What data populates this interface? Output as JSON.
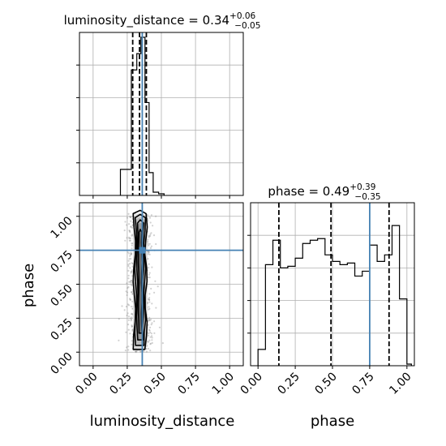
{
  "chart_data": [
    {
      "type": "histogram",
      "panel": "luminosity_distance marginal",
      "title": {
        "param": "luminosity_distance",
        "value": "0.34",
        "plus": "+0.06",
        "minus": "−0.05"
      },
      "xlim": [
        -0.1,
        1.1
      ],
      "bins": [
        [
          0.2,
          0.24,
          0.16
        ],
        [
          0.24,
          0.28,
          0.16
        ],
        [
          0.28,
          0.32,
          0.77
        ],
        [
          0.32,
          0.35,
          0.87
        ],
        [
          0.35,
          0.38,
          0.97
        ],
        [
          0.38,
          0.41,
          0.57
        ],
        [
          0.41,
          0.44,
          0.14
        ],
        [
          0.44,
          0.48,
          0.02
        ],
        [
          0.48,
          0.52,
          0.01
        ]
      ],
      "quantiles": [
        0.29,
        0.34,
        0.39
      ],
      "truth": 0.36,
      "grid": true
    },
    {
      "type": "scatter",
      "panel": "2D joint density",
      "xlabel": "luminosity_distance",
      "ylabel": "phase",
      "xlim": [
        -0.1,
        1.1
      ],
      "ylim": [
        -0.1,
        1.1
      ],
      "x_ticks": [
        "0.00",
        "0.25",
        "0.50",
        "0.75",
        "1.00"
      ],
      "y_ticks": [
        "0.00",
        "0.25",
        "0.50",
        "0.75",
        "1.00"
      ],
      "truth": {
        "x": 0.36,
        "y": 0.75
      },
      "contour_levels": [
        {
          "half_width": 0.052,
          "y_min": 0.02,
          "y_max": 1.02
        },
        {
          "half_width": 0.04,
          "y_min": 0.05,
          "y_max": 0.99
        },
        {
          "half_width": 0.026,
          "y_min": 0.09,
          "y_max": 0.95
        },
        {
          "half_width": 0.014,
          "y_min": 0.14,
          "y_max": 0.88
        }
      ],
      "grid": true
    },
    {
      "type": "histogram",
      "panel": "phase marginal",
      "title": {
        "param": "phase",
        "value": "0.49",
        "plus": "+0.39",
        "minus": "−0.35"
      },
      "xlabel": "phase",
      "xlim": [
        -0.05,
        1.05
      ],
      "x_ticks": [
        "0.00",
        "0.25",
        "0.50",
        "0.75",
        "1.00"
      ],
      "bins": [
        [
          0.0,
          0.05,
          0.1
        ],
        [
          0.05,
          0.1,
          0.62
        ],
        [
          0.1,
          0.15,
          0.77
        ],
        [
          0.15,
          0.2,
          0.6
        ],
        [
          0.2,
          0.25,
          0.61
        ],
        [
          0.25,
          0.3,
          0.66
        ],
        [
          0.3,
          0.35,
          0.75
        ],
        [
          0.35,
          0.4,
          0.77
        ],
        [
          0.4,
          0.45,
          0.78
        ],
        [
          0.45,
          0.5,
          0.68
        ],
        [
          0.5,
          0.55,
          0.64
        ],
        [
          0.55,
          0.6,
          0.62
        ],
        [
          0.6,
          0.65,
          0.63
        ],
        [
          0.65,
          0.7,
          0.55
        ],
        [
          0.7,
          0.75,
          0.58
        ],
        [
          0.75,
          0.8,
          0.74
        ],
        [
          0.8,
          0.85,
          0.64
        ],
        [
          0.85,
          0.9,
          0.68
        ],
        [
          0.9,
          0.95,
          0.86
        ],
        [
          0.95,
          1.0,
          0.41
        ],
        [
          1.0,
          1.03,
          0.01
        ]
      ],
      "quantiles": [
        0.14,
        0.49,
        0.88
      ],
      "truth": 0.75,
      "grid": true
    }
  ],
  "style": {
    "truth_color": "#4682b4",
    "line_color": "#000000",
    "grid_color": "#b0b0b0",
    "scatter_color": "#7f7f7f"
  }
}
